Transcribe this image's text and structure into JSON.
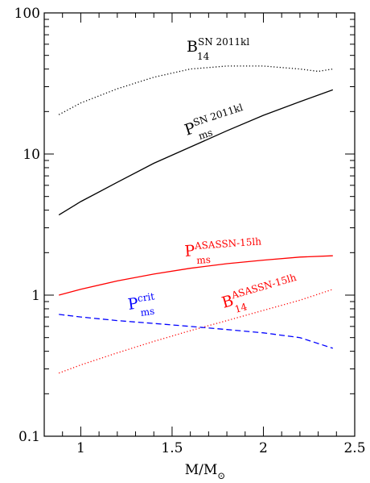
{
  "chart_data": {
    "type": "line",
    "title": "",
    "xlabel": "M/M",
    "xlabel_symbol": "⊙",
    "ylabel": "",
    "xlim": [
      0.8,
      2.5
    ],
    "ylim": [
      0.1,
      100
    ],
    "y_scale": "log",
    "grid": false,
    "x_ticks": [
      1,
      1.5,
      2,
      2.5
    ],
    "x_tick_labels": [
      "1",
      "1.5",
      "2",
      "2.5"
    ],
    "y_ticks": [
      0.1,
      1,
      10,
      100
    ],
    "y_tick_labels": [
      "0.1",
      "1",
      "10",
      "100"
    ],
    "series": [
      {
        "color": "#000000",
        "style": "dotted",
        "label": {
          "main": "B",
          "sup": "SN 2011kl",
          "sub": "14"
        },
        "x": [
          0.88,
          1.0,
          1.2,
          1.4,
          1.6,
          1.8,
          2.0,
          2.2,
          2.3,
          2.38
        ],
        "y": [
          19,
          23,
          29,
          35,
          40,
          42,
          42,
          40,
          38.5,
          40
        ]
      },
      {
        "color": "#000000",
        "style": "solid",
        "label": {
          "main": "P",
          "sup": "SN 2011kl",
          "sub": "ms"
        },
        "x": [
          0.88,
          1.0,
          1.2,
          1.4,
          1.6,
          1.8,
          2.0,
          2.2,
          2.38
        ],
        "y": [
          3.7,
          4.6,
          6.3,
          8.6,
          11.2,
          14.6,
          18.8,
          23.5,
          28.5
        ]
      },
      {
        "color": "#ff0000",
        "style": "solid",
        "label": {
          "main": "P",
          "sup": "ASASSN-15lh",
          "sub": "ms"
        },
        "x": [
          0.88,
          1.0,
          1.2,
          1.4,
          1.6,
          1.8,
          2.0,
          2.2,
          2.38
        ],
        "y": [
          1.0,
          1.1,
          1.26,
          1.41,
          1.55,
          1.67,
          1.77,
          1.86,
          1.9
        ]
      },
      {
        "color": "#ff0000",
        "style": "dotted",
        "label": {
          "main": "B",
          "sup": "ASASSN-15lh",
          "sub": "14"
        },
        "x": [
          0.88,
          1.0,
          1.2,
          1.4,
          1.6,
          1.8,
          2.0,
          2.2,
          2.38
        ],
        "y": [
          0.28,
          0.32,
          0.39,
          0.47,
          0.56,
          0.66,
          0.78,
          0.92,
          1.1
        ]
      },
      {
        "color": "#0000ff",
        "style": "dashed",
        "label": {
          "main": "P",
          "sup": "crit",
          "sub": "ms"
        },
        "x": [
          0.88,
          1.0,
          1.2,
          1.4,
          1.6,
          1.8,
          2.0,
          2.2,
          2.38
        ],
        "y": [
          0.73,
          0.7,
          0.66,
          0.63,
          0.6,
          0.57,
          0.54,
          0.5,
          0.42
        ]
      }
    ]
  }
}
